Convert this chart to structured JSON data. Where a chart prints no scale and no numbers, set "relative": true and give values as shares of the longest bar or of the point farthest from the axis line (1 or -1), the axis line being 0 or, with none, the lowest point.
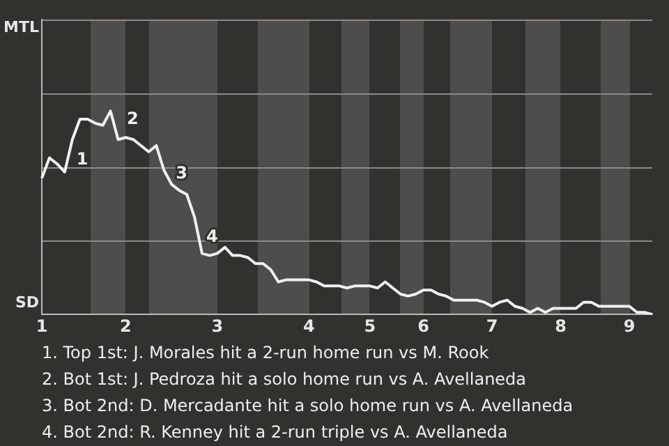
{
  "chart_data": {
    "type": "line",
    "relative": true,
    "categories": [
      "1",
      null,
      null,
      null,
      null,
      null,
      null,
      null,
      null,
      null,
      null,
      "2",
      null,
      null,
      null,
      null,
      null,
      null,
      null,
      null,
      null,
      null,
      null,
      "3",
      null,
      null,
      null,
      null,
      null,
      null,
      null,
      null,
      null,
      null,
      null,
      "4",
      null,
      null,
      null,
      null,
      null,
      null,
      null,
      "5",
      null,
      null,
      null,
      null,
      null,
      null,
      "6",
      null,
      null,
      null,
      null,
      null,
      null,
      null,
      null,
      "7",
      null,
      null,
      null,
      null,
      null,
      null,
      null,
      null,
      "8",
      null,
      null,
      null,
      null,
      null,
      null,
      null,
      null,
      "9",
      null,
      null,
      null
    ],
    "series": [
      {
        "color": "#f0f0f0",
        "values": [
          0.67,
          0.77,
          0.74,
          0.7,
          0.86,
          0.96,
          0.96,
          0.94,
          0.93,
          1.0,
          0.86,
          0.87,
          0.86,
          0.83,
          0.8,
          0.83,
          0.71,
          0.64,
          0.61,
          0.59,
          0.48,
          0.3,
          0.29,
          0.3,
          0.33,
          0.29,
          0.29,
          0.28,
          0.25,
          0.25,
          0.22,
          0.16,
          0.17,
          0.17,
          0.17,
          0.17,
          0.16,
          0.14,
          0.14,
          0.14,
          0.13,
          0.14,
          0.14,
          0.14,
          0.13,
          0.16,
          0.13,
          0.1,
          0.09,
          0.1,
          0.12,
          0.12,
          0.1,
          0.09,
          0.07,
          0.07,
          0.07,
          0.07,
          0.06,
          0.04,
          0.06,
          0.07,
          0.04,
          0.03,
          0.01,
          0.03,
          0.01,
          0.03,
          0.03,
          0.03,
          0.03,
          0.06,
          0.06,
          0.04,
          0.04,
          0.04,
          0.04,
          0.04,
          0.01,
          0.01,
          0
        ]
      }
    ],
    "marker": "none",
    "annotations": [
      "MTL",
      "SD",
      "1",
      "2",
      "3",
      "4",
      "1. Top 1st: J. Morales hit a 2-run home run vs M. Rook",
      "2. Bot 1st: J. Pedroza hit a solo home run vs A. Avellaneda",
      "3. Bot 2nd: D. Mercadante hit a solo home run vs A. Avellaneda",
      "4. Bot 2nd: R. Kenney hit a 2-run triple vs A. Avellaneda"
    ]
  }
}
